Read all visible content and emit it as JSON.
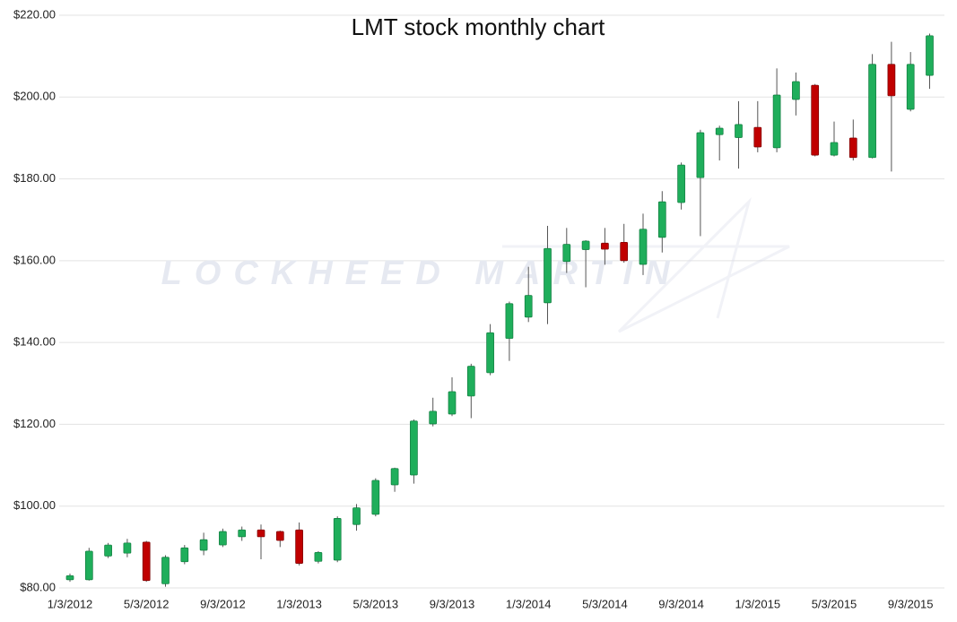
{
  "chart_data": {
    "type": "candlestick",
    "title": "LMT stock monthly chart",
    "watermark": "LOCKHEED MARTIN",
    "categories": [
      "1/3/2012",
      null,
      null,
      null,
      "5/3/2012",
      null,
      null,
      null,
      "9/3/2012",
      null,
      null,
      null,
      "1/3/2013",
      null,
      null,
      null,
      "5/3/2013",
      null,
      null,
      null,
      "9/3/2013",
      null,
      null,
      null,
      "1/3/2014",
      null,
      null,
      null,
      "5/3/2014",
      null,
      null,
      null,
      "9/3/2014",
      null,
      null,
      null,
      "1/3/2015",
      null,
      null,
      null,
      "5/3/2015",
      null,
      null,
      null,
      "9/3/2015",
      null
    ],
    "open": [
      82,
      82,
      87.8,
      88.5,
      91.2,
      81,
      86.4,
      89.2,
      90.5,
      92.5,
      94.2,
      93.8,
      94.2,
      86.5,
      86.8,
      95.5,
      98,
      105.2,
      107.6,
      120.1,
      122.5,
      126.9,
      132.6,
      141,
      146.2,
      149.7,
      159.8,
      162.7,
      164.3,
      164.5,
      159.1,
      165.7,
      174.2,
      180.3,
      190.8,
      190.1,
      192.6,
      187.6,
      199.4,
      202.9,
      185.8,
      190,
      185.2,
      208,
      197,
      205.3
    ],
    "high": [
      83.5,
      89.8,
      91,
      92,
      91.5,
      88,
      90.5,
      93.5,
      94.5,
      95,
      95.5,
      94,
      96,
      89,
      97.5,
      100.5,
      106.8,
      109.4,
      121.2,
      126.5,
      131.5,
      134.8,
      144.5,
      150,
      158.5,
      168.5,
      168,
      165,
      168,
      169,
      171.5,
      177,
      184,
      192,
      193,
      199,
      199,
      207,
      206,
      203.2,
      194,
      194.5,
      210.5,
      213.5,
      211,
      215.5
    ],
    "low": [
      81.5,
      81.8,
      87.3,
      87.5,
      81.5,
      80.3,
      85.8,
      88,
      90,
      91.5,
      87,
      90,
      85.5,
      86,
      86.3,
      94,
      97.5,
      103.5,
      105.5,
      119.5,
      122,
      121.5,
      132,
      135.5,
      145,
      144.5,
      157,
      153.5,
      159,
      159.5,
      156.5,
      162,
      172.5,
      166,
      184.5,
      182.5,
      186.5,
      186.5,
      195.5,
      185.5,
      185.5,
      184.5,
      185,
      181.8,
      196.5,
      202
    ],
    "close": [
      83,
      89,
      90.5,
      91,
      81.8,
      87.5,
      89.8,
      91.8,
      93.8,
      94.2,
      92.5,
      91.6,
      86,
      88.7,
      97,
      99.6,
      106.3,
      109.2,
      120.8,
      123.2,
      128,
      134.2,
      142.4,
      149.5,
      151.5,
      163,
      164,
      164.8,
      162.8,
      160,
      167.7,
      174.4,
      183.4,
      191.3,
      192.4,
      193.3,
      187.8,
      200.5,
      203.8,
      185.8,
      188.9,
      185.2,
      208,
      200.3,
      208,
      215
    ],
    "up_color": "#1fae5b",
    "down_color": "#c00000",
    "ylim": [
      80,
      220
    ],
    "yticks": [
      {
        "value": 80,
        "label": "$80.00"
      },
      {
        "value": 100,
        "label": "$100.00"
      },
      {
        "value": 120,
        "label": "$120.00"
      },
      {
        "value": 140,
        "label": "$140.00"
      },
      {
        "value": 160,
        "label": "$160.00"
      },
      {
        "value": 180,
        "label": "$180.00"
      },
      {
        "value": 200,
        "label": "$200.00"
      },
      {
        "value": 220,
        "label": "$220.00"
      }
    ],
    "grid": true
  }
}
